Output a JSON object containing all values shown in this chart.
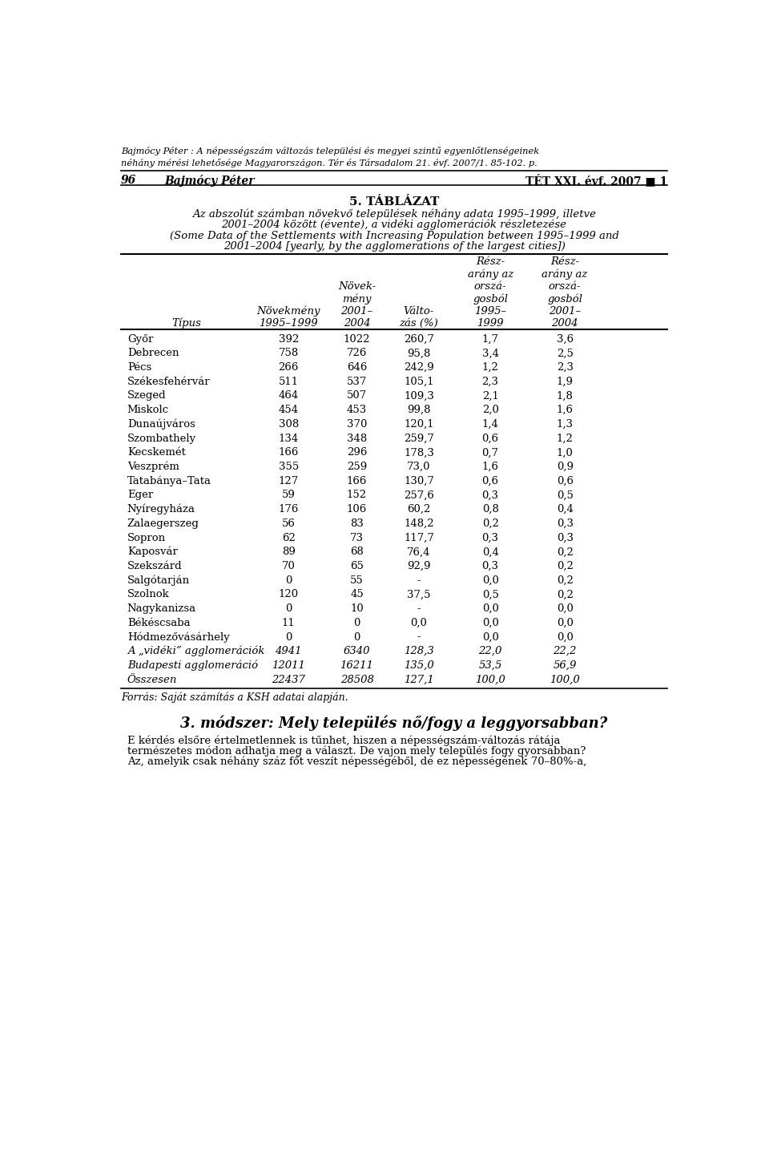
{
  "header_italic": "Bajmócy Péter : A népességszám változás települési és megyei szintű egyenlőtlenségeinek\nnéhány mérési lehetősége Magyarországon. Tér és Társadalom 21. évf. 2007/1. 85-102. p.",
  "page_num": "96",
  "page_author": "Bajmócy Péter",
  "page_right": "TÉT XXI. évf. 2007 ■ 1",
  "table_title_bold": "5. TÁBLÁZAT",
  "table_subtitle_line1": "Az abszolút számban növekvő települések néhány adata 1995–1999, illetve",
  "table_subtitle_line2": "2001–2004 között (évente), a vidéki agglomerációk részletezése",
  "table_subtitle_en_line1": "(Some Data of the Settlements with Increasing Population between 1995–1999 and",
  "table_subtitle_en_line2": "2001–2004 [yearly, by the agglomerations of the largest cities])",
  "rows": [
    [
      "Győr",
      "392",
      "1022",
      "260,7",
      "1,7",
      "3,6"
    ],
    [
      "Debrecen",
      "758",
      "726",
      "95,8",
      "3,4",
      "2,5"
    ],
    [
      "Pécs",
      "266",
      "646",
      "242,9",
      "1,2",
      "2,3"
    ],
    [
      "Székesfehérvár",
      "511",
      "537",
      "105,1",
      "2,3",
      "1,9"
    ],
    [
      "Szeged",
      "464",
      "507",
      "109,3",
      "2,1",
      "1,8"
    ],
    [
      "Miskolc",
      "454",
      "453",
      "99,8",
      "2,0",
      "1,6"
    ],
    [
      "Dunaújváros",
      "308",
      "370",
      "120,1",
      "1,4",
      "1,3"
    ],
    [
      "Szombathely",
      "134",
      "348",
      "259,7",
      "0,6",
      "1,2"
    ],
    [
      "Kecskemét",
      "166",
      "296",
      "178,3",
      "0,7",
      "1,0"
    ],
    [
      "Veszprém",
      "355",
      "259",
      "73,0",
      "1,6",
      "0,9"
    ],
    [
      "Tatabánya–Tata",
      "127",
      "166",
      "130,7",
      "0,6",
      "0,6"
    ],
    [
      "Eger",
      "59",
      "152",
      "257,6",
      "0,3",
      "0,5"
    ],
    [
      "Nyíregyháza",
      "176",
      "106",
      "60,2",
      "0,8",
      "0,4"
    ],
    [
      "Zalaegerszeg",
      "56",
      "83",
      "148,2",
      "0,2",
      "0,3"
    ],
    [
      "Sopron",
      "62",
      "73",
      "117,7",
      "0,3",
      "0,3"
    ],
    [
      "Kaposvár",
      "89",
      "68",
      "76,4",
      "0,4",
      "0,2"
    ],
    [
      "Szekszárd",
      "70",
      "65",
      "92,9",
      "0,3",
      "0,2"
    ],
    [
      "Salgótarján",
      "0",
      "55",
      "-",
      "0,0",
      "0,2"
    ],
    [
      "Szolnok",
      "120",
      "45",
      "37,5",
      "0,5",
      "0,2"
    ],
    [
      "Nagykanizsa",
      "0",
      "10",
      "-",
      "0,0",
      "0,0"
    ],
    [
      "Békéscsaba",
      "11",
      "0",
      "0,0",
      "0,0",
      "0,0"
    ],
    [
      "Hódmezővásárhely",
      "0",
      "0",
      "-",
      "0,0",
      "0,0"
    ],
    [
      "A „vidéki” agglomerációk",
      "4941",
      "6340",
      "128,3",
      "22,0",
      "22,2"
    ],
    [
      "Budapesti agglomeráció",
      "12011",
      "16211",
      "135,0",
      "53,5",
      "56,9"
    ],
    [
      "Összesen",
      "22437",
      "28508",
      "127,1",
      "100,0",
      "100,0"
    ]
  ],
  "italic_rows": [
    22,
    23,
    24
  ],
  "source_text": "Forrás: Saját számítás a KSH adatai alapján.",
  "section_title": "3. módszer: Mely település nő/fogy a leggyorsabban?",
  "body_line1": "E kérdés elsőre értelmetlennek is tűnhet, hiszen a népességszám-változás rátája",
  "body_line2": "természetes módon adhatja meg a választ. De vajon mely település fogy gyorsabban?",
  "body_line3": "Az, amelyik csak néhány száz főt veszít népességéből, de ez népességének 70–80%-a,",
  "bg_color": "#ffffff"
}
